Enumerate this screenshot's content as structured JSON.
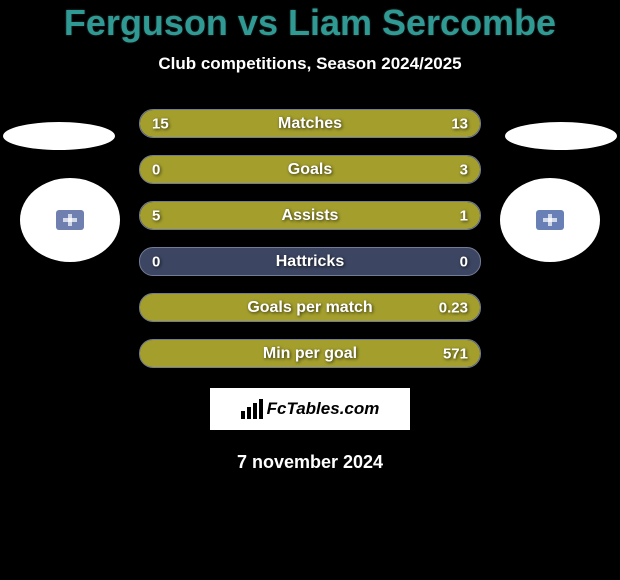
{
  "title_color": "#2e9a93",
  "title": "Ferguson vs Liam Sercombe",
  "subtitle": "Club competitions, Season 2024/2025",
  "date": "7 november 2024",
  "branding": "FcTables.com",
  "avatars": {
    "left_badge_color": "#6f7fb0",
    "right_badge_color": "#6880b5"
  },
  "bar_style": {
    "empty_bg": "#3c4662",
    "border": "#717c98",
    "left_fill_color": "#a49f2d",
    "right_fill_color": "#a49f2d"
  },
  "stats": [
    {
      "label": "Matches",
      "left_val": "15",
      "right_val": "13",
      "left_pct": 53.6,
      "right_pct": 46.4
    },
    {
      "label": "Goals",
      "left_val": "0",
      "right_val": "3",
      "left_pct": 0,
      "right_pct": 100
    },
    {
      "label": "Assists",
      "left_val": "5",
      "right_val": "1",
      "left_pct": 83.3,
      "right_pct": 16.7
    },
    {
      "label": "Hattricks",
      "left_val": "0",
      "right_val": "0",
      "left_pct": 0,
      "right_pct": 0
    },
    {
      "label": "Goals per match",
      "left_val": "",
      "right_val": "0.23",
      "left_pct": 0,
      "right_pct": 100
    },
    {
      "label": "Min per goal",
      "left_val": "",
      "right_val": "571",
      "left_pct": 0,
      "right_pct": 100
    }
  ]
}
